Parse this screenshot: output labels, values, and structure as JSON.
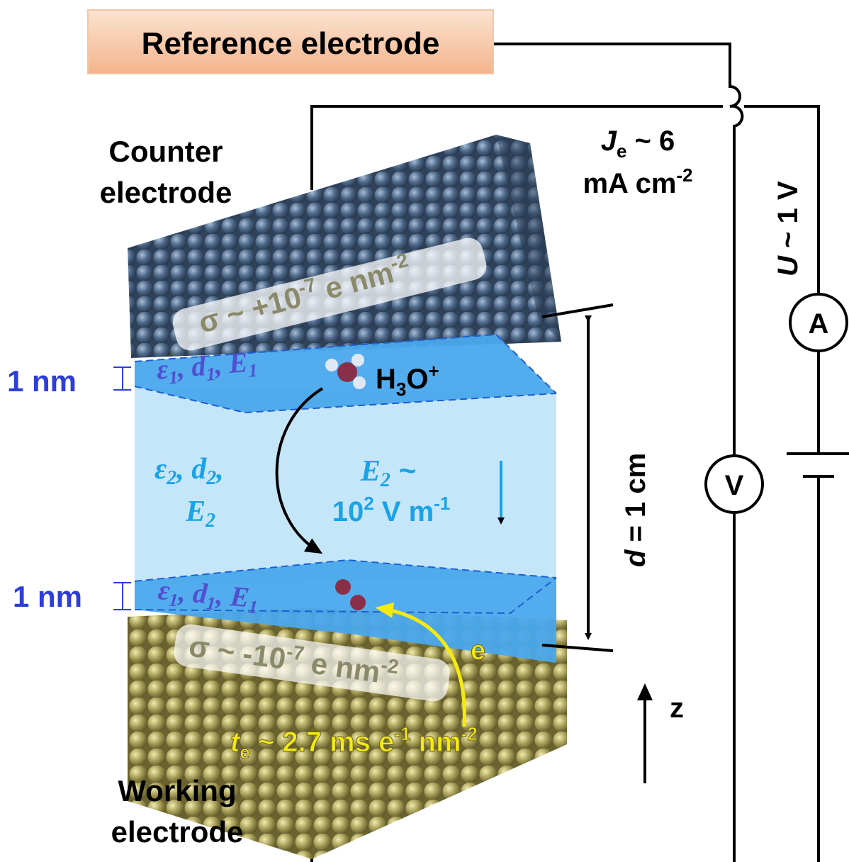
{
  "reference_electrode": "Reference electrode",
  "counter_electrode": [
    "Counter",
    "electrode"
  ],
  "working_electrode": [
    "Working",
    "electrode"
  ],
  "current_density": {
    "line1": [
      "J",
      "e",
      " ~ 6"
    ],
    "line2": [
      "mA cm",
      "-2"
    ]
  },
  "cell_voltage": [
    "U",
    " ~ 1 V"
  ],
  "ammeter": "A",
  "voltmeter": "V",
  "counter_charge": [
    "σ ~ +10",
    "-7",
    " e nm",
    "-2"
  ],
  "working_charge": [
    "σ ~ -10",
    "-7",
    " e nm",
    "-2"
  ],
  "layer_thickness": [
    "1 nm",
    "1 nm"
  ],
  "top_layer": [
    "ε",
    "1",
    ", d",
    "1",
    ", E",
    "1"
  ],
  "bottom_layer": [
    "ε",
    "1",
    ", d",
    "1",
    ", E",
    "1"
  ],
  "ion": [
    "H",
    "3",
    "O",
    "+"
  ],
  "bulk_layer": {
    "line1": [
      "ε",
      "2",
      ", d",
      "2",
      ","
    ],
    "line2": [
      "E",
      "2"
    ]
  },
  "bulk_field": {
    "line1": [
      "E",
      "2",
      " ~"
    ],
    "line2": [
      "10",
      "2",
      " V m",
      "-1"
    ]
  },
  "distance": [
    "d",
    " = 1 cm"
  ],
  "electron": "e",
  "transfer_time": [
    "t",
    "e",
    " ~ 2.7 ms e",
    "-1",
    " nm",
    "-2"
  ],
  "axis": "z"
}
